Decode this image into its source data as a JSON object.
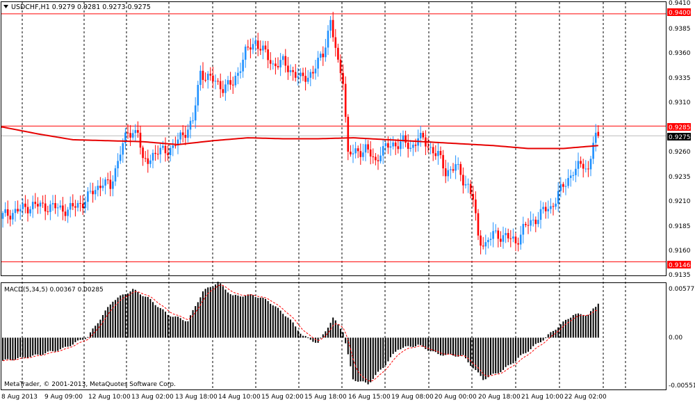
{
  "symbol_header": "USDCHF,H1  0.9279 0.9281 0.9273 0.9275",
  "macd_header": "MACD(5,34,5) 0.00367 0.00285",
  "copyright": "MetaTrader, © 2001-2013, MetaQuotes Software Corp.",
  "colors": {
    "bull": "#1e90ff",
    "bear": "#ff0000",
    "ma": "#e60000",
    "level": "#ff0000",
    "grid": "#000000",
    "hist": "#000000",
    "signal": "#ff0000",
    "price_marker": "#ff0000"
  },
  "price_axis_labels": [
    "0.9410",
    "0.9385",
    "0.9360",
    "0.9335",
    "0.9310",
    "0.9260",
    "0.9235",
    "0.9210",
    "0.9185",
    "0.9160",
    "0.9135"
  ],
  "macd_axis_labels": [
    "0.00577",
    "0.00",
    "-0.00551"
  ],
  "time_labels": [
    "8 Aug 2013",
    "9 Aug 09:00",
    "12 Aug 10:00",
    "13 Aug 02:00",
    "13 Aug 18:00",
    "14 Aug 10:00",
    "15 Aug 02:00",
    "15 Aug 18:00",
    "16 Aug 15:00",
    "19 Aug 08:00",
    "20 Aug 00:00",
    "20 Aug 18:00",
    "21 Aug 10:00",
    "22 Aug 02:00"
  ],
  "level_markers": [
    "0.9400",
    "0.9285",
    "0.9146"
  ],
  "current_price": "0.9275",
  "chart_data": {
    "type": "candlestick",
    "symbol": "USDCHF",
    "timeframe": "H1",
    "last_bar": {
      "open": 0.9279,
      "high": 0.9281,
      "low": 0.9273,
      "close": 0.9275
    },
    "horizontal_levels": [
      0.94,
      0.9285,
      0.9146
    ],
    "close_path": [
      [
        0,
        0.9193
      ],
      [
        12,
        0.9204
      ],
      [
        20,
        0.9202
      ],
      [
        26,
        0.9199
      ],
      [
        32,
        0.9207
      ],
      [
        40,
        0.9228
      ],
      [
        43,
        0.9222
      ],
      [
        47,
        0.926
      ],
      [
        50,
        0.9277
      ],
      [
        54,
        0.9281
      ],
      [
        56,
        0.9246
      ],
      [
        60,
        0.9256
      ],
      [
        68,
        0.9263
      ],
      [
        76,
        0.929
      ],
      [
        79,
        0.934
      ],
      [
        82,
        0.9335
      ],
      [
        88,
        0.9325
      ],
      [
        92,
        0.9328
      ],
      [
        97,
        0.936
      ],
      [
        101,
        0.9372
      ],
      [
        104,
        0.9362
      ],
      [
        108,
        0.9348
      ],
      [
        112,
        0.935
      ],
      [
        116,
        0.934
      ],
      [
        119,
        0.9333
      ],
      [
        124,
        0.934
      ],
      [
        128,
        0.936
      ],
      [
        131,
        0.9392
      ],
      [
        134,
        0.9348
      ],
      [
        136,
        0.9335
      ],
      [
        138,
        0.9255
      ],
      [
        141,
        0.9258
      ],
      [
        145,
        0.9262
      ],
      [
        149,
        0.9248
      ],
      [
        151,
        0.926
      ],
      [
        156,
        0.9266
      ],
      [
        160,
        0.9269
      ],
      [
        163,
        0.9262
      ],
      [
        166,
        0.9274
      ],
      [
        170,
        0.9265
      ],
      [
        174,
        0.9255
      ],
      [
        177,
        0.9238
      ],
      [
        181,
        0.9244
      ],
      [
        184,
        0.923
      ],
      [
        186,
        0.9224
      ],
      [
        188,
        0.921
      ],
      [
        190,
        0.917
      ],
      [
        193,
        0.9164
      ],
      [
        196,
        0.9174
      ],
      [
        201,
        0.9172
      ],
      [
        205,
        0.9166
      ],
      [
        208,
        0.918
      ],
      [
        212,
        0.9188
      ],
      [
        216,
        0.9198
      ],
      [
        219,
        0.9201
      ],
      [
        222,
        0.9216
      ],
      [
        225,
        0.9226
      ],
      [
        228,
        0.924
      ],
      [
        232,
        0.9245
      ],
      [
        234,
        0.924
      ],
      [
        236,
        0.927
      ],
      [
        238,
        0.9275
      ]
    ],
    "ma_path": [
      [
        0,
        0.9284
      ],
      [
        14,
        0.9277
      ],
      [
        28,
        0.9271
      ],
      [
        42,
        0.927
      ],
      [
        56,
        0.9269
      ],
      [
        70,
        0.9266
      ],
      [
        84,
        0.927
      ],
      [
        98,
        0.9273
      ],
      [
        112,
        0.9272
      ],
      [
        126,
        0.9272
      ],
      [
        140,
        0.9273
      ],
      [
        154,
        0.9271
      ],
      [
        168,
        0.9269
      ],
      [
        182,
        0.9267
      ],
      [
        196,
        0.9265
      ],
      [
        210,
        0.9262
      ],
      [
        224,
        0.9262
      ],
      [
        238,
        0.9265
      ]
    ],
    "price_ylim": [
      0.9132,
      0.9412
    ],
    "macd": {
      "params": "5,34,5",
      "value": 0.00367,
      "signal": 0.00285,
      "ylim": [
        -0.0056,
        0.0059
      ],
      "path": [
        [
          0,
          -0.0025
        ],
        [
          12,
          -0.002
        ],
        [
          24,
          -0.0012
        ],
        [
          34,
          0.0001
        ],
        [
          44,
          0.004
        ],
        [
          52,
          0.0052
        ],
        [
          58,
          0.0043
        ],
        [
          66,
          0.0025
        ],
        [
          74,
          0.0018
        ],
        [
          80,
          0.005
        ],
        [
          86,
          0.006
        ],
        [
          92,
          0.0045
        ],
        [
          100,
          0.0046
        ],
        [
          106,
          0.004
        ],
        [
          114,
          0.0022
        ],
        [
          120,
          0.0002
        ],
        [
          126,
          -0.0006
        ],
        [
          132,
          0.0021
        ],
        [
          136,
          0.0007
        ],
        [
          140,
          -0.0045
        ],
        [
          146,
          -0.005
        ],
        [
          152,
          -0.0032
        ],
        [
          158,
          -0.0012
        ],
        [
          166,
          -0.0008
        ],
        [
          174,
          -0.0018
        ],
        [
          184,
          -0.002
        ],
        [
          192,
          -0.0045
        ],
        [
          200,
          -0.0035
        ],
        [
          208,
          -0.0018
        ],
        [
          216,
          -0.0002
        ],
        [
          222,
          0.0012
        ],
        [
          228,
          0.0025
        ],
        [
          234,
          0.0025
        ],
        [
          238,
          0.0036
        ]
      ]
    }
  }
}
